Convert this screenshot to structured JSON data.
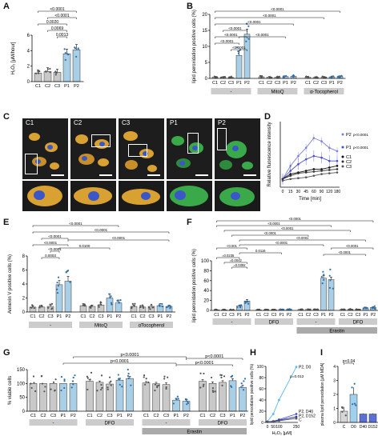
{
  "panels": {
    "A": {
      "label": "A",
      "ylabel": "H₂O₂ [µM/hour]",
      "yticks": [
        "0",
        "2",
        "4",
        "6"
      ],
      "categories": [
        "C1",
        "C2",
        "C3",
        "P1",
        "P2"
      ],
      "pvalues": [
        "<0.0001",
        "<0.0001",
        "0.0020",
        "0.0069",
        "0.0013"
      ]
    },
    "B": {
      "label": "B",
      "ylabel": "lipid peroxidation positive cells (%)",
      "yticks": [
        "0",
        "5",
        "10",
        "15",
        "20"
      ],
      "groups": [
        "-",
        "MitoQ",
        "α-Tocopherol"
      ],
      "pvalues": [
        "<0.0001",
        "<0.0001",
        "<0.0001",
        "<0.0001",
        "<0.0001",
        "<0.0001",
        "<0.0001",
        "<0.0001"
      ]
    },
    "C": {
      "label": "C",
      "images": [
        "C1",
        "C2",
        "C3",
        "P1",
        "P2"
      ]
    },
    "D": {
      "label": "D",
      "ylabel": "Relative fluorescence intensity",
      "xlabel": "Time [min]",
      "xticks": [
        "0",
        "15",
        "30",
        "45",
        "60",
        "90",
        "120",
        "180"
      ],
      "legend": [
        {
          "name": "P2",
          "p": "p<0.0001"
        },
        {
          "name": "P1",
          "p": "p<0.0001"
        },
        {
          "name": "C1",
          "p": ""
        },
        {
          "name": "C2",
          "p": ""
        },
        {
          "name": "C3",
          "p": ""
        }
      ]
    },
    "E": {
      "label": "E",
      "ylabel": "Annexin V positive cells (%)",
      "yticks": [
        "0",
        "2",
        "4",
        "6",
        "8"
      ],
      "groups": [
        "-",
        "MitoQ",
        "αTocopherol"
      ],
      "pvalues": [
        "<0.0001",
        "<0.0001",
        "<0.0001",
        "<0.0001",
        "<0.0001",
        "0.0003",
        "0.0100",
        "<0.0001"
      ]
    },
    "F": {
      "label": "F",
      "ylabel": "lipid peroxidation positive cells (%)",
      "yticks": [
        "0",
        "20",
        "40",
        "60",
        "80",
        "100"
      ],
      "groups": [
        "-",
        "DFO",
        "-",
        "DFO"
      ],
      "supergroup": "Erastin",
      "pvalues": [
        "<0.0001",
        "<0.0001",
        "<0.0001",
        "<0.0001",
        "<0.0001",
        "<0.0001",
        "<0.001",
        "0.0116",
        "<0.0001",
        "=0.0235",
        "=0.0042",
        "=0.0392",
        "<0.0001"
      ]
    },
    "G": {
      "label": "G",
      "ylabel": "% viable cells",
      "yticks": [
        "0",
        "50",
        "100",
        "150"
      ],
      "groups": [
        "-",
        "DFO",
        "-",
        "DFO"
      ],
      "supergroup": "Erastin",
      "pvalues": [
        "p<0.0001",
        "p<0.0001",
        "p<0.0001",
        "p<0.0001"
      ]
    },
    "H": {
      "label": "H",
      "ylabel": "lipid peroxidation positive cells (%)",
      "xlabel": "H₂O₂ [µM]",
      "xticks": [
        "0",
        "50",
        "100",
        "250"
      ],
      "yticks": [
        "0",
        "20",
        "40",
        "60",
        "80",
        "100"
      ],
      "legend": [
        {
          "name": "P2, D0"
        },
        {
          "name": "P2, D40"
        },
        {
          "name": "P2, D152"
        },
        {
          "name": "C"
        }
      ],
      "pvalue": "p=0.012"
    },
    "I": {
      "label": "I",
      "ylabel": "plasma lipid peroxidation [µM MDA]",
      "yticks": [
        "0",
        "1",
        "2",
        "3",
        "4"
      ],
      "categories": [
        "C",
        "D0",
        "D40",
        "D152"
      ],
      "pvalue": "p<0.04"
    }
  },
  "chart_data": [
    {
      "type": "bar",
      "panel": "A",
      "categories": [
        "C1",
        "C2",
        "C3",
        "P1",
        "P2"
      ],
      "values": [
        1.1,
        1.3,
        1.2,
        3.6,
        4.1
      ],
      "errors": [
        0.4,
        0.5,
        0.4,
        0.6,
        0.7
      ],
      "ylim": [
        0,
        6
      ],
      "color": "#a9cfe6"
    },
    {
      "type": "bar",
      "panel": "B",
      "categories": [
        "C1",
        "C2",
        "C3",
        "P1",
        "P2",
        "C1",
        "C2",
        "C3",
        "P1",
        "P2",
        "C1",
        "C2",
        "C3",
        "P1",
        "P2"
      ],
      "values": [
        0.4,
        0.3,
        0.3,
        7.2,
        13.8,
        0.5,
        0.4,
        0.4,
        0.6,
        0.7,
        0.4,
        0.3,
        0.4,
        0.5,
        0.6
      ],
      "errors": [
        0.2,
        0.2,
        0.2,
        1.4,
        1.6,
        0.2,
        0.2,
        0.2,
        0.2,
        0.2,
        0.2,
        0.2,
        0.2,
        0.2,
        0.2
      ],
      "ylim": [
        0,
        20
      ]
    },
    {
      "type": "line",
      "panel": "D",
      "x": [
        "0",
        "15",
        "30",
        "45",
        "60",
        "90",
        "120",
        "180"
      ],
      "series": [
        {
          "name": "P2",
          "values": [
            0.5,
            1.3,
            1.9,
            2.4,
            3.0,
            2.8,
            2.4,
            2.2
          ]
        },
        {
          "name": "P1",
          "values": [
            0.5,
            1.0,
            1.4,
            1.7,
            1.9,
            1.8,
            1.6,
            1.6
          ]
        },
        {
          "name": "C1",
          "values": [
            0.5,
            0.8,
            0.9,
            1.0,
            1.1,
            1.1,
            1.2,
            1.3
          ]
        },
        {
          "name": "C2",
          "values": [
            0.5,
            0.7,
            0.85,
            0.9,
            0.95,
            1.0,
            1.05,
            1.1
          ]
        },
        {
          "name": "C3",
          "values": [
            0.4,
            0.5,
            0.55,
            0.6,
            0.7,
            0.8,
            0.85,
            0.9
          ]
        }
      ],
      "ylim": [
        0,
        4
      ]
    },
    {
      "type": "bar",
      "panel": "E",
      "categories": [
        "C1",
        "C2",
        "C3",
        "P1",
        "P2",
        "C1",
        "C2",
        "C3",
        "P1",
        "P2",
        "C1",
        "C2",
        "C3",
        "P1",
        "P2"
      ],
      "values": [
        0.7,
        0.7,
        0.8,
        3.9,
        4.4,
        0.9,
        0.8,
        1.0,
        2.0,
        1.3,
        0.8,
        0.7,
        0.8,
        0.9,
        0.8
      ],
      "errors": [
        0.2,
        0.2,
        0.2,
        0.6,
        0.7,
        0.3,
        0.2,
        0.3,
        0.6,
        0.4,
        0.2,
        0.2,
        0.2,
        0.3,
        0.2
      ],
      "ylim": [
        0,
        8
      ]
    },
    {
      "type": "bar",
      "panel": "F",
      "categories": [
        "C1",
        "C2",
        "C3",
        "P1",
        "P2",
        "C1",
        "C2",
        "C3",
        "P1",
        "P2",
        "C1",
        "C2",
        "C3",
        "P1",
        "P2",
        "C1",
        "C2",
        "C3",
        "P1",
        "P2"
      ],
      "values": [
        1,
        1,
        1,
        9,
        19,
        1,
        1,
        1,
        2,
        2,
        2,
        2,
        2,
        65,
        62,
        2,
        2,
        2,
        5,
        6
      ],
      "errors": [
        0.4,
        0.4,
        0.4,
        2,
        3,
        0.4,
        0.4,
        0.4,
        0.6,
        0.6,
        0.6,
        0.6,
        0.6,
        5,
        5,
        0.6,
        0.6,
        0.6,
        1.5,
        1.5
      ],
      "ylim": [
        0,
        100
      ]
    },
    {
      "type": "bar",
      "panel": "G",
      "categories": [
        "C1",
        "C2",
        "C3",
        "P1",
        "P2",
        "C1",
        "C2",
        "C3",
        "P1",
        "P2",
        "C1",
        "C2",
        "C3",
        "P1",
        "P2",
        "C1",
        "C2",
        "C3",
        "P1",
        "P2"
      ],
      "values": [
        100,
        100,
        100,
        100,
        100,
        108,
        104,
        98,
        112,
        118,
        102,
        99,
        96,
        40,
        36,
        108,
        100,
        104,
        110,
        86
      ],
      "errors": [
        0,
        0,
        0,
        0,
        0,
        6,
        5,
        6,
        7,
        8,
        5,
        5,
        6,
        6,
        5,
        6,
        6,
        6,
        7,
        8
      ],
      "ylim": [
        0,
        150
      ]
    },
    {
      "type": "line",
      "panel": "H",
      "x": [
        0,
        50,
        100,
        250
      ],
      "series": [
        {
          "name": "P2, D0",
          "values": [
            2,
            15,
            40,
            99
          ]
        },
        {
          "name": "P2, D40",
          "values": [
            1,
            2,
            5,
            15
          ]
        },
        {
          "name": "P2, D152",
          "values": [
            1,
            2,
            4,
            10
          ]
        },
        {
          "name": "C",
          "values": [
            1,
            1,
            3,
            7
          ]
        }
      ],
      "ylim": [
        0,
        100
      ]
    },
    {
      "type": "bar",
      "panel": "I",
      "categories": [
        "C",
        "D0",
        "D40",
        "D152"
      ],
      "values": [
        0.8,
        2.0,
        0.6,
        0.6
      ],
      "errors": [
        0.3,
        0.5,
        0.05,
        0.05
      ],
      "ylim": [
        0,
        4
      ]
    }
  ],
  "colors": {
    "control": "#c9c9c9",
    "patient": "#a9cfe6",
    "dot_ctrl": "#555555",
    "dot_pat": "#2d6fb0",
    "shade": "#cccccc",
    "line_p2": "#7b7fe0",
    "line_p1": "#4a4fc9",
    "line_c": "#111111",
    "line_h_p2d0": "#5ab8f0",
    "line_h_p2d40": "#4a4fd9",
    "line_h_p2d152": "#2a36a8",
    "bar_i_c": "#d6d6d6",
    "bar_i_d0": "#9fd0ee",
    "bar_i_d": "#5b6fd6",
    "cell_orange": "#d9a132",
    "cell_green": "#3aa94a",
    "nucleus": "#3b56c8"
  }
}
